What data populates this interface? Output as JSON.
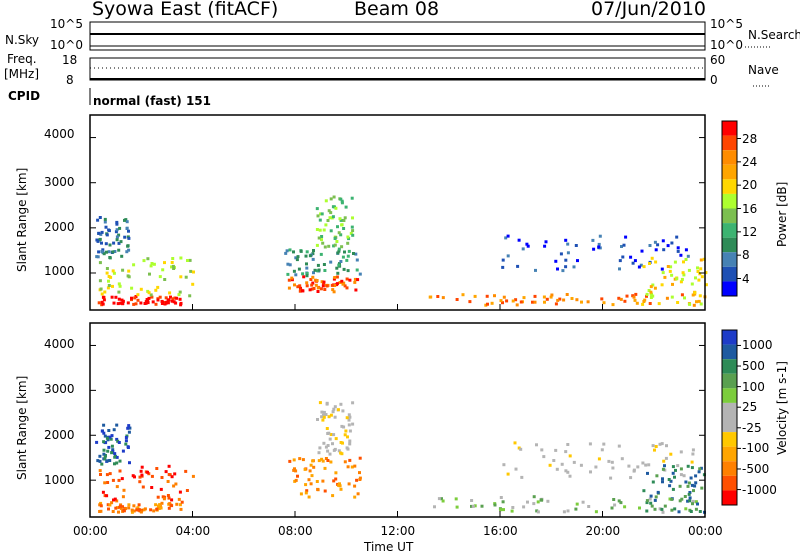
{
  "header": {
    "left_title": "Syowa East (fitACF)",
    "beam": "Beam 08",
    "date": "07/Jun/2010"
  },
  "summary_panels": {
    "nsky_label": "N.Sky",
    "nsky_ticks": [
      "10^5",
      "10^0"
    ],
    "nsearch_label": "N.Search",
    "nsearch_ticks": [
      "10^5",
      "10^0"
    ],
    "freq_label": "Freq.",
    "freq_unit": "[MHz]",
    "freq_ticks": [
      "18",
      "8"
    ],
    "nave_label": "Nave",
    "nave_ticks": [
      "60",
      "0"
    ],
    "cpid_label": "CPID",
    "cpid_text": "normal (fast) 151"
  },
  "chart_data": [
    {
      "type": "heatmap",
      "name": "power",
      "ylabel": "Slant Range [km]",
      "y_ticks": [
        "4000",
        "3000",
        "2000",
        "1000"
      ],
      "y_tick_values": [
        4000,
        3000,
        2000,
        1000
      ],
      "ylim": [
        180,
        4500
      ],
      "xlim": [
        0,
        24
      ],
      "colorbar": {
        "label": "Power [dB]",
        "ticks": [
          "28",
          "24",
          "20",
          "16",
          "12",
          "8",
          "4"
        ],
        "colors": [
          "#ff0000",
          "#ff4500",
          "#ff8c00",
          "#ffa500",
          "#ffd700",
          "#adff2f",
          "#7cbf50",
          "#3cb371",
          "#2e8b57",
          "#4682b4",
          "#1e50b4",
          "#0000ff"
        ]
      },
      "gates": [
        {
          "t0": 0.3,
          "t1": 3.5,
          "r0": 250,
          "r1": 450,
          "bin": 0
        },
        {
          "t0": 0.3,
          "t1": 4.0,
          "r0": 450,
          "r1": 1300,
          "bin": 5
        },
        {
          "t0": 0.2,
          "t1": 1.5,
          "r0": 1300,
          "r1": 2200,
          "bin": 9
        },
        {
          "t0": 7.7,
          "t1": 10.5,
          "r0": 550,
          "r1": 900,
          "bin": 1
        },
        {
          "t0": 7.5,
          "t1": 10.5,
          "r0": 900,
          "r1": 1500,
          "bin": 8
        },
        {
          "t0": 8.8,
          "t1": 10.2,
          "r0": 1500,
          "r1": 2700,
          "bin": 6
        },
        {
          "t0": 13.2,
          "t1": 23.8,
          "r0": 250,
          "r1": 500,
          "bin": 2
        },
        {
          "t0": 16.0,
          "t1": 23.5,
          "r0": 1000,
          "r1": 1800,
          "bin": 10
        },
        {
          "t0": 21.5,
          "t1": 24.0,
          "r0": 250,
          "r1": 1300,
          "bin": 4
        }
      ]
    },
    {
      "type": "heatmap",
      "name": "velocity",
      "ylabel": "Slant Range [km]",
      "xlabel": "Time UT",
      "x_ticks": [
        "00:00",
        "04:00",
        "08:00",
        "12:00",
        "16:00",
        "20:00",
        "00:00"
      ],
      "x_tick_values": [
        0,
        4,
        8,
        12,
        16,
        20,
        24
      ],
      "y_ticks": [
        "4000",
        "3000",
        "2000",
        "1000"
      ],
      "y_tick_values": [
        4000,
        3000,
        2000,
        1000
      ],
      "ylim": [
        180,
        4500
      ],
      "xlim": [
        0,
        24
      ],
      "colorbar": {
        "label": "Velocity [m s-1]",
        "ticks": [
          "1000",
          "500",
          "100",
          "25",
          "-25",
          "-100",
          "-500",
          "-1000"
        ],
        "colors": [
          "#1e3cc8",
          "#1e5aa0",
          "#2e8b57",
          "#5aa050",
          "#7ccd3c",
          "#b4b4b4",
          "#b4b4b4",
          "#ffc800",
          "#ffa500",
          "#ff8000",
          "#ff5000",
          "#ff0000"
        ]
      },
      "gates": [
        {
          "t0": 0.3,
          "t1": 3.5,
          "r0": 250,
          "r1": 450,
          "bin": 9
        },
        {
          "t0": 0.3,
          "t1": 4.0,
          "r0": 450,
          "r1": 1300,
          "bin": 10
        },
        {
          "t0": 0.2,
          "t1": 1.5,
          "r0": 1300,
          "r1": 2200,
          "bin": 1
        },
        {
          "t0": 7.7,
          "t1": 10.5,
          "r0": 550,
          "r1": 1500,
          "bin": 9
        },
        {
          "t0": 8.8,
          "t1": 10.2,
          "r0": 1500,
          "r1": 2700,
          "bin": 6
        },
        {
          "t0": 13.2,
          "t1": 23.8,
          "r0": 250,
          "r1": 600,
          "bin": 4
        },
        {
          "t0": 16.0,
          "t1": 23.5,
          "r0": 1000,
          "r1": 1800,
          "bin": 6
        },
        {
          "t0": 21.5,
          "t1": 24.0,
          "r0": 250,
          "r1": 1300,
          "bin": 2
        }
      ]
    }
  ]
}
